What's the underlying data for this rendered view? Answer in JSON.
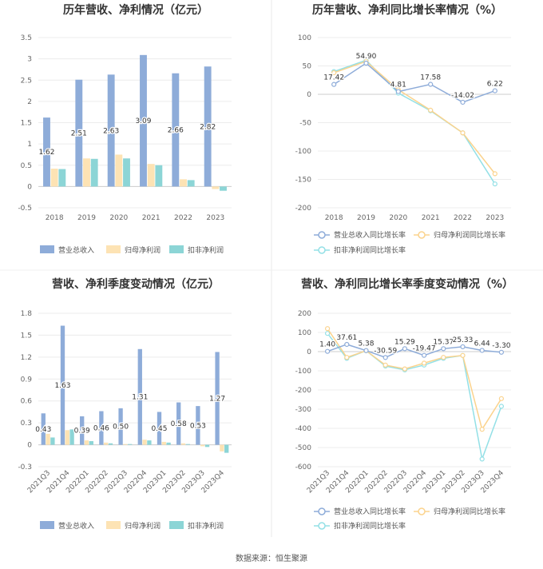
{
  "source_text": "数据来源：恒生聚源",
  "colors": {
    "revenue": "#8eacd9",
    "net_profit": "#fde3b4",
    "deducted_profit": "#8cd5d6",
    "rev_line": "#8eacd9",
    "np_line": "#fbd38d",
    "dp_line": "#93e0e6"
  },
  "chart_data": [
    {
      "id": "annual-bar",
      "type": "bar",
      "title": "历年营收、净利情况（亿元）",
      "categories": [
        "2018",
        "2019",
        "2020",
        "2021",
        "2022",
        "2023"
      ],
      "series": [
        {
          "name": "营业总收入",
          "values": [
            1.62,
            2.51,
            2.63,
            3.09,
            2.66,
            2.82
          ]
        },
        {
          "name": "归母净利润",
          "values": [
            0.42,
            0.66,
            0.75,
            0.53,
            0.17,
            -0.06
          ]
        },
        {
          "name": "扣非净利润",
          "values": [
            0.41,
            0.65,
            0.66,
            0.5,
            0.15,
            -0.1
          ]
        }
      ],
      "labels": [
        "1.62",
        "2.51",
        "2.63",
        "3.09",
        "2.66",
        "2.82"
      ],
      "yticks": [
        "-0.5",
        "0",
        "0.5",
        "1",
        "1.5",
        "2",
        "2.5",
        "3",
        "3.5"
      ],
      "ylim": [
        -0.5,
        3.5
      ]
    },
    {
      "id": "annual-line",
      "type": "line",
      "title": "历年营收、净利同比增长率情况（%）",
      "categories": [
        "2018",
        "2019",
        "2020",
        "2021",
        "2022",
        "2023"
      ],
      "series": [
        {
          "name": "营业总收入同比增长率",
          "values": [
            17.42,
            54.9,
            4.81,
            17.58,
            -14.02,
            6.22
          ]
        },
        {
          "name": "归母净利润同比增长率",
          "values": [
            38,
            58,
            8,
            -28,
            -68,
            -140
          ]
        },
        {
          "name": "扣非净利润同比增长率",
          "values": [
            40,
            60,
            2,
            -29,
            -68,
            -158
          ]
        }
      ],
      "labels": [
        "17.42",
        "54.90",
        "4.81",
        "17.58",
        "-14.02",
        "6.22"
      ],
      "yticks": [
        "-200",
        "-150",
        "-100",
        "-50",
        "0",
        "50",
        "100"
      ],
      "ylim": [
        -200,
        100
      ]
    },
    {
      "id": "quarter-bar",
      "type": "bar",
      "title": "营收、净利季度变动情况（亿元）",
      "categories": [
        "2021Q3",
        "2021Q4",
        "2022Q1",
        "2022Q2",
        "2022Q3",
        "2022Q4",
        "2023Q1",
        "2023Q2",
        "2023Q3",
        "2023Q4"
      ],
      "series": [
        {
          "name": "营业总收入",
          "values": [
            0.43,
            1.63,
            0.39,
            0.46,
            0.5,
            1.31,
            0.45,
            0.58,
            0.53,
            1.27
          ]
        },
        {
          "name": "归母净利润",
          "values": [
            0.15,
            0.2,
            0.06,
            0.03,
            0.01,
            0.07,
            0.04,
            0.02,
            -0.02,
            -0.09
          ]
        },
        {
          "name": "扣非净利润",
          "values": [
            0.1,
            0.21,
            0.05,
            0.02,
            0.01,
            0.06,
            0.03,
            0.01,
            -0.03,
            -0.11
          ]
        }
      ],
      "labels": [
        "0.43",
        "1.63",
        "0.39",
        "0.46",
        "0.50",
        "1.31",
        "0.45",
        "0.58",
        "0.53",
        "1.27"
      ],
      "yticks": [
        "-0.3",
        "0",
        "0.3",
        "0.6",
        "0.9",
        "1.2",
        "1.5",
        "1.8"
      ],
      "ylim": [
        -0.3,
        1.8
      ]
    },
    {
      "id": "quarter-line",
      "type": "line",
      "title": "营收、净利同比增长率季度变动情况（%）",
      "categories": [
        "2021Q3",
        "2021Q4",
        "2022Q1",
        "2022Q2",
        "2022Q3",
        "2022Q4",
        "2023Q1",
        "2023Q2",
        "2023Q3",
        "2023Q4"
      ],
      "series": [
        {
          "name": "营业总收入同比增长率",
          "values": [
            1.4,
            37.61,
            5.38,
            -30.59,
            15.29,
            -19.47,
            15.37,
            25.33,
            6.44,
            -3.3
          ]
        },
        {
          "name": "归母净利润同比增长率",
          "values": [
            120,
            -30,
            5,
            -70,
            -90,
            -60,
            -30,
            -20,
            -405,
            -245
          ]
        },
        {
          "name": "扣非净利润同比增长率",
          "values": [
            95,
            -35,
            5,
            -75,
            -95,
            -70,
            -35,
            -20,
            -560,
            -285
          ]
        }
      ],
      "labels": [
        "1.40",
        "37.61",
        "5.38",
        "-30.59",
        "15.29",
        "-19.47",
        "15.37",
        "25.33",
        "6.44",
        "-3.30"
      ],
      "yticks": [
        "-600",
        "-500",
        "-400",
        "-300",
        "-200",
        "-100",
        "0",
        "100",
        "200"
      ],
      "ylim": [
        -600,
        200
      ]
    }
  ]
}
